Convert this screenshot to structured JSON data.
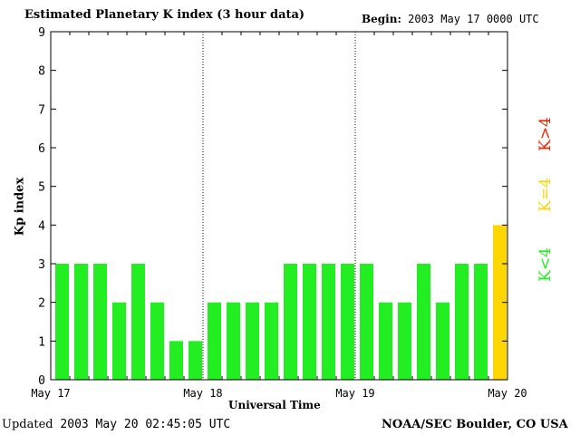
{
  "header": {
    "title": "Estimated Planetary K index (3 hour data)",
    "begin_label": "Begin:",
    "begin_value": "2003 May 17 0000 UTC"
  },
  "footer": {
    "updated_label": "Updated",
    "updated_value": "2003 May 20 02:45:05 UTC",
    "org": "NOAA/SEC Boulder, CO USA"
  },
  "legend": {
    "below": "K<4",
    "equal": "K=4",
    "above": "K>4"
  },
  "colors": {
    "below": "#22ee22",
    "equal": "#ffd700",
    "above": "#ee2200"
  },
  "chart_data": {
    "type": "bar",
    "title": "Estimated Planetary K index (3 hour data)",
    "xlabel": "Universal Time",
    "ylabel": "Kp index",
    "ylim": [
      0,
      9
    ],
    "yticks": [
      0,
      1,
      2,
      3,
      4,
      5,
      6,
      7,
      8,
      9
    ],
    "grid": false,
    "day_labels": [
      "May 17",
      "May 18",
      "May 19",
      "May 20"
    ],
    "day_separators": [
      "May 18",
      "May 19"
    ],
    "interval_hours": 3,
    "start": "2003-05-17 00:00 UTC",
    "values": [
      3,
      3,
      3,
      2,
      3,
      2,
      1,
      1,
      2,
      2,
      2,
      2,
      3,
      3,
      3,
      3,
      3,
      2,
      2,
      3,
      2,
      3,
      3,
      4
    ]
  }
}
